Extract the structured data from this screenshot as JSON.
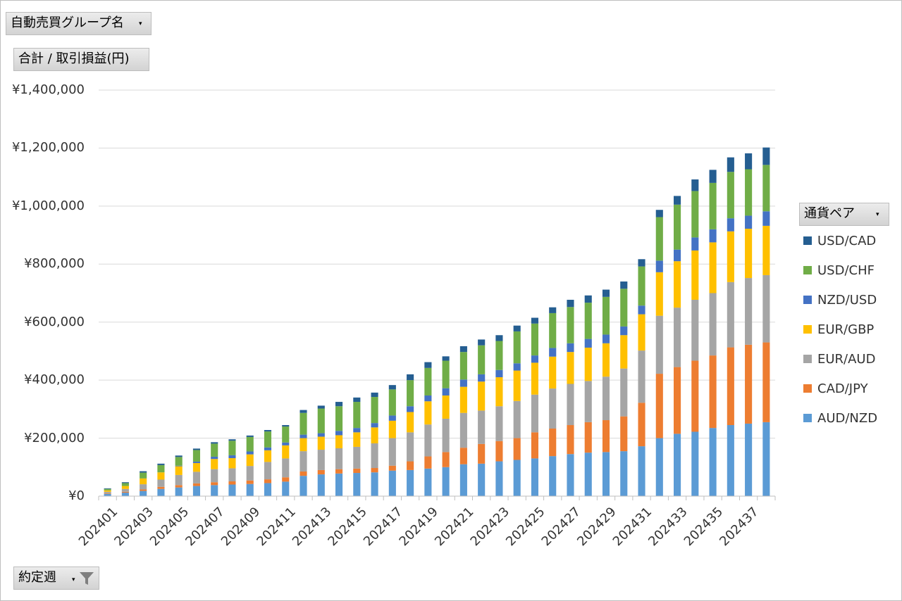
{
  "filters": {
    "group_field": "自動売買グループ名",
    "value_field": "合計 / 取引損益(円)",
    "legend_field": "通貨ペア",
    "axis_field": "約定週"
  },
  "colors": {
    "AUD/NZD": "#5b9bd5",
    "CAD/JPY": "#ed7d31",
    "EUR/AUD": "#a5a5a5",
    "EUR/GBP": "#ffc000",
    "NZD/USD": "#4472c4",
    "USD/CHF": "#70ad47",
    "USD/CAD": "#255e91",
    "gridline": "#d9d9d9",
    "axis": "#bfbfbf"
  },
  "chart_data": {
    "type": "bar",
    "stacked": true,
    "title": "",
    "xlabel": "",
    "ylabel": "",
    "ylim": [
      0,
      1400000
    ],
    "yticks": [
      "¥0",
      "¥200,000",
      "¥400,000",
      "¥600,000",
      "¥800,000",
      "¥1,000,000",
      "¥1,200,000",
      "¥1,400,000"
    ],
    "ytick_values": [
      0,
      200000,
      400000,
      600000,
      800000,
      1000000,
      1200000,
      1400000
    ],
    "grid": true,
    "legend_position": "right",
    "legend_order": [
      "USD/CAD",
      "USD/CHF",
      "NZD/USD",
      "EUR/GBP",
      "EUR/AUD",
      "CAD/JPY",
      "AUD/NZD"
    ],
    "categories": [
      "202401",
      "202402",
      "202403",
      "202404",
      "202405",
      "202406",
      "202407",
      "202408",
      "202409",
      "202410",
      "202411",
      "202412",
      "202413",
      "202414",
      "202415",
      "202416",
      "202417",
      "202418",
      "202419",
      "202420",
      "202421",
      "202422",
      "202423",
      "202424",
      "202425",
      "202426",
      "202427",
      "202428",
      "202429",
      "202430",
      "202431",
      "202432",
      "202433",
      "202434",
      "202435",
      "202436",
      "202437",
      "202438"
    ],
    "category_labels": [
      "202401",
      "",
      "202403",
      "",
      "202405",
      "",
      "202407",
      "",
      "202409",
      "",
      "202411",
      "",
      "202413",
      "",
      "202415",
      "",
      "202417",
      "",
      "202419",
      "",
      "202421",
      "",
      "202423",
      "",
      "202425",
      "",
      "202427",
      "",
      "202429",
      "",
      "202431",
      "",
      "202433",
      "",
      "202435",
      "",
      "202437",
      ""
    ],
    "series": [
      {
        "name": "AUD/NZD",
        "values": [
          8000,
          12000,
          18000,
          25000,
          30000,
          35000,
          38000,
          40000,
          42000,
          45000,
          50000,
          70000,
          75000,
          78000,
          80000,
          82000,
          88000,
          90000,
          95000,
          100000,
          110000,
          112000,
          120000,
          125000,
          130000,
          138000,
          145000,
          150000,
          152000,
          155000,
          172000,
          200000,
          215000,
          222000,
          235000,
          245000,
          250000,
          255000
        ]
      },
      {
        "name": "CAD/JPY",
        "values": [
          2000,
          3000,
          5000,
          7000,
          8000,
          9000,
          10000,
          11000,
          12000,
          13000,
          15000,
          15000,
          15000,
          15000,
          15000,
          15000,
          17000,
          30000,
          42000,
          52000,
          57000,
          68000,
          70000,
          75000,
          90000,
          95000,
          100000,
          105000,
          110000,
          120000,
          150000,
          222000,
          230000,
          245000,
          250000,
          268000,
          272000,
          275000
        ]
      },
      {
        "name": "EUR/AUD",
        "values": [
          5000,
          10000,
          18000,
          25000,
          35000,
          40000,
          45000,
          45000,
          50000,
          60000,
          65000,
          70000,
          70000,
          72000,
          75000,
          85000,
          95000,
          100000,
          110000,
          115000,
          120000,
          115000,
          120000,
          128000,
          130000,
          138000,
          142000,
          142000,
          150000,
          165000,
          180000,
          200000,
          205000,
          210000,
          215000,
          225000,
          230000,
          232000
        ]
      },
      {
        "name": "EUR/GBP",
        "values": [
          5000,
          10000,
          20000,
          25000,
          30000,
          30000,
          35000,
          35000,
          40000,
          40000,
          45000,
          45000,
          45000,
          45000,
          50000,
          55000,
          60000,
          70000,
          80000,
          80000,
          90000,
          100000,
          100000,
          105000,
          110000,
          110000,
          110000,
          115000,
          115000,
          115000,
          125000,
          150000,
          160000,
          170000,
          175000,
          175000,
          170000,
          170000
        ]
      },
      {
        "name": "NZD/USD",
        "values": [
          0,
          0,
          0,
          0,
          2000,
          5000,
          8000,
          10000,
          10000,
          10000,
          10000,
          12000,
          12000,
          15000,
          15000,
          15000,
          18000,
          20000,
          20000,
          25000,
          25000,
          25000,
          25000,
          25000,
          25000,
          30000,
          30000,
          30000,
          30000,
          30000,
          30000,
          40000,
          40000,
          45000,
          45000,
          45000,
          45000,
          50000
        ]
      },
      {
        "name": "USD/CHF",
        "values": [
          5000,
          10000,
          20000,
          25000,
          30000,
          40000,
          45000,
          50000,
          50000,
          55000,
          55000,
          75000,
          85000,
          85000,
          90000,
          90000,
          90000,
          90000,
          95000,
          95000,
          95000,
          100000,
          100000,
          110000,
          110000,
          120000,
          125000,
          125000,
          130000,
          130000,
          135000,
          150000,
          155000,
          160000,
          160000,
          160000,
          160000,
          160000
        ]
      },
      {
        "name": "USD/CAD",
        "values": [
          2000,
          3000,
          5000,
          5000,
          5000,
          5000,
          5000,
          5000,
          5000,
          5000,
          5000,
          10000,
          10000,
          15000,
          15000,
          15000,
          15000,
          20000,
          20000,
          15000,
          20000,
          20000,
          20000,
          20000,
          20000,
          20000,
          25000,
          25000,
          25000,
          25000,
          25000,
          25000,
          30000,
          40000,
          45000,
          50000,
          55000,
          60000
        ]
      }
    ]
  }
}
